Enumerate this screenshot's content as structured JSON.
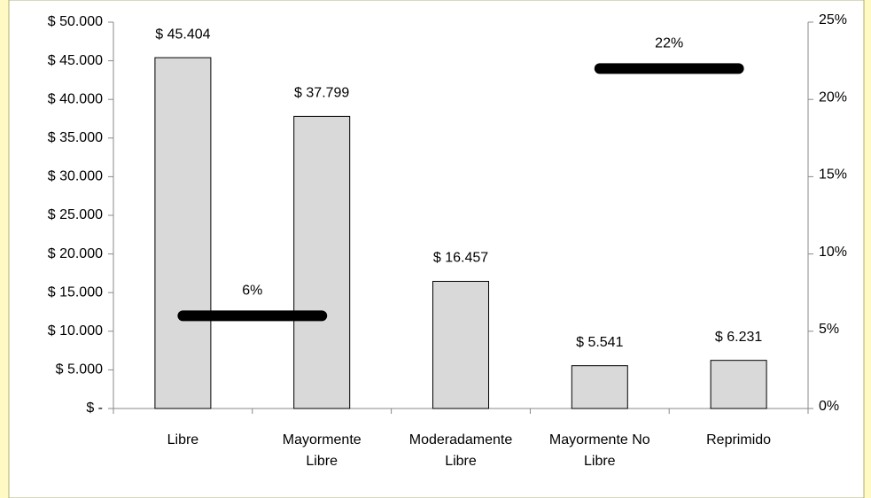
{
  "chart_data": {
    "type": "bar",
    "categories": [
      "Libre",
      "Mayormente Libre",
      "Moderadamente Libre",
      "Mayormente No Libre",
      "Reprimido"
    ],
    "series": [
      {
        "type": "bar",
        "color": "#d9d9d9",
        "values": [
          45404,
          37799,
          16457,
          5541,
          6231
        ],
        "value_labels": [
          "$ 45.404",
          "$ 37.799",
          "$ 16.457",
          "$ 5.541",
          "$ 6.231"
        ]
      },
      {
        "type": "line",
        "axis": "y2",
        "color": "#000000",
        "values": [
          6,
          6,
          null,
          22,
          22
        ],
        "value_labels": [
          null,
          "6%",
          null,
          null,
          "22%"
        ]
      }
    ],
    "ylim": [
      0,
      50000
    ],
    "yticks": [
      {
        "value": 0,
        "label": "$ -"
      },
      {
        "value": 5000,
        "label": "$ 5.000"
      },
      {
        "value": 10000,
        "label": "$ 10.000"
      },
      {
        "value": 15000,
        "label": "$ 15.000"
      },
      {
        "value": 20000,
        "label": "$ 20.000"
      },
      {
        "value": 25000,
        "label": "$ 25.000"
      },
      {
        "value": 30000,
        "label": "$ 30.000"
      },
      {
        "value": 35000,
        "label": "$ 35.000"
      },
      {
        "value": 40000,
        "label": "$ 40.000"
      },
      {
        "value": 45000,
        "label": "$ 45.000"
      },
      {
        "value": 50000,
        "label": "$ 50.000"
      }
    ],
    "y2lim": [
      0,
      25
    ],
    "y2ticks": [
      {
        "value": 0,
        "label": "0%"
      },
      {
        "value": 5,
        "label": "5%"
      },
      {
        "value": 10,
        "label": "10%"
      },
      {
        "value": 15,
        "label": "15%"
      },
      {
        "value": 20,
        "label": "20%"
      },
      {
        "value": 25,
        "label": "25%"
      }
    ],
    "grid": false
  }
}
